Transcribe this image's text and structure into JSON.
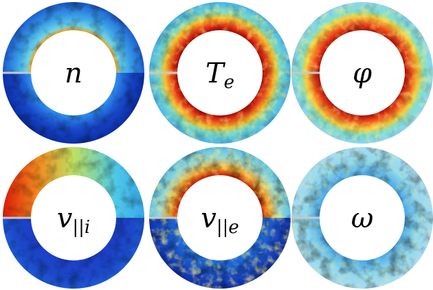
{
  "panels": [
    {
      "symbol": "n"
    },
    {
      "symbol": "T",
      "subscript": "e"
    },
    {
      "symbol": "φ"
    },
    {
      "symbol": "v",
      "subscript": "||i"
    },
    {
      "symbol": "v",
      "subscript": "||e"
    },
    {
      "symbol": "ω"
    }
  ]
}
